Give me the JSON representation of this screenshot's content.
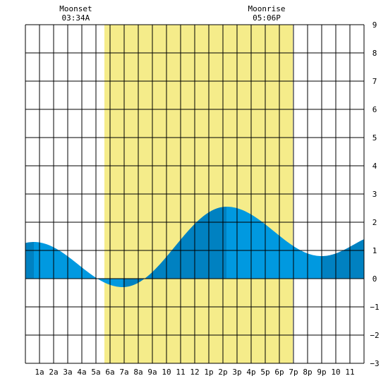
{
  "chart_data": {
    "type": "area",
    "x_unit": "hour of day",
    "x_range": [
      0,
      24
    ],
    "ylim": [
      -3,
      9
    ],
    "y_ticks": [
      -3,
      -2,
      -1,
      0,
      1,
      2,
      3,
      4,
      5,
      6,
      7,
      8,
      9
    ],
    "x_tick_labels": [
      {
        "hour": 1,
        "label": "1a"
      },
      {
        "hour": 2,
        "label": "2a"
      },
      {
        "hour": 3,
        "label": "3a"
      },
      {
        "hour": 4,
        "label": "4a"
      },
      {
        "hour": 5,
        "label": "5a"
      },
      {
        "hour": 6,
        "label": "6a"
      },
      {
        "hour": 7,
        "label": "7a"
      },
      {
        "hour": 8,
        "label": "8a"
      },
      {
        "hour": 9,
        "label": "9a"
      },
      {
        "hour": 10,
        "label": "10"
      },
      {
        "hour": 11,
        "label": "11"
      },
      {
        "hour": 12,
        "label": "12"
      },
      {
        "hour": 13,
        "label": "1p"
      },
      {
        "hour": 14,
        "label": "2p"
      },
      {
        "hour": 15,
        "label": "3p"
      },
      {
        "hour": 16,
        "label": "4p"
      },
      {
        "hour": 17,
        "label": "5p"
      },
      {
        "hour": 18,
        "label": "6p"
      },
      {
        "hour": 19,
        "label": "7p"
      },
      {
        "hour": 20,
        "label": "8p"
      },
      {
        "hour": 21,
        "label": "9p"
      },
      {
        "hour": 22,
        "label": "10"
      },
      {
        "hour": 23,
        "label": "11"
      }
    ],
    "grid": true,
    "daylight": {
      "start_hour": 5.6,
      "end_hour": 18.95,
      "color": "#f5ec8a"
    },
    "annotations": [
      {
        "hour": 3.57,
        "title": "Moonset",
        "time": "03:34A"
      },
      {
        "hour": 17.1,
        "title": "Moonrise",
        "time": "05:06P"
      }
    ],
    "tide_extremes": [
      {
        "hour": 0.6,
        "height": 1.3
      },
      {
        "hour": 6.9,
        "height": -0.3
      },
      {
        "hour": 14.25,
        "height": 2.55
      },
      {
        "hour": 21.0,
        "height": 0.8
      },
      {
        "hour": 25.5,
        "height": 1.6
      }
    ],
    "phase_colors": {
      "rising": "#0081c1",
      "falling": "#0099e0"
    }
  }
}
